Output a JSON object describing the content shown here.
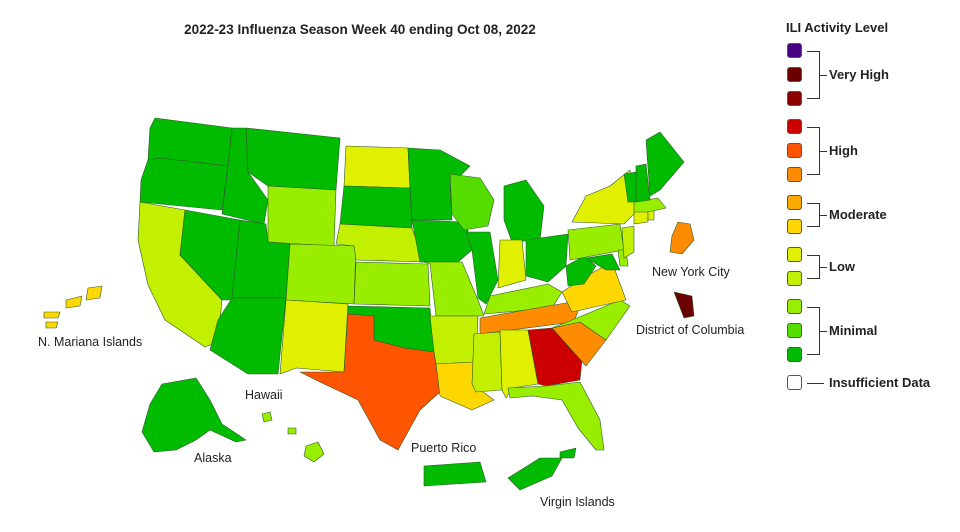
{
  "title": "2022-23 Influenza Season Week 40 ending Oct 08, 2022",
  "legend": {
    "title": "ILI Activity Level",
    "groups": [
      {
        "label": "Very High",
        "levels": [
          13,
          12,
          11
        ]
      },
      {
        "label": "High",
        "levels": [
          10,
          9,
          8
        ]
      },
      {
        "label": "Moderate",
        "levels": [
          7,
          6
        ]
      },
      {
        "label": "Low",
        "levels": [
          5,
          4
        ]
      },
      {
        "label": "Minimal",
        "levels": [
          3,
          2,
          1
        ]
      },
      {
        "label": "Insufficient Data",
        "levels": [
          0
        ]
      }
    ]
  },
  "level_colors": {
    "13": "#4b0082",
    "12": "#6a0000",
    "11": "#8b0000",
    "10": "#cc0000",
    "9": "#ff5500",
    "8": "#ff8c00",
    "7": "#ffaa00",
    "6": "#ffd700",
    "5": "#e0f000",
    "4": "#c2f000",
    "3": "#99ee00",
    "2": "#55dd00",
    "1": "#00bb00",
    "0": "#ffffff"
  },
  "territory_labels": {
    "mariana": "N. Mariana Islands",
    "alaska": "Alaska",
    "hawaii": "Hawaii",
    "puerto_rico": "Puerto Rico",
    "virgin_islands": "Virgin Islands",
    "nyc": "New York City",
    "dc": "District of Columbia"
  },
  "activity": {
    "WA": 1,
    "OR": 1,
    "ID": 1,
    "MT": 1,
    "WY": 3,
    "CA": 4,
    "NV": 1,
    "UT": 1,
    "AZ": 1,
    "CO": 3,
    "NM": 5,
    "ND": 5,
    "SD": 1,
    "NE": 4,
    "KS": 3,
    "OK": 1,
    "TX": 9,
    "MN": 1,
    "IA": 1,
    "MO": 3,
    "AR": 4,
    "LA": 6,
    "WI": 2,
    "IL": 1,
    "IN": 5,
    "MI": 1,
    "OH": 1,
    "KY": 3,
    "TN": 8,
    "MS": 4,
    "AL": 5,
    "GA": 10,
    "FL": 3,
    "SC": 8,
    "NC": 3,
    "VA": 6,
    "WV": 1,
    "PA": 3,
    "NY": 5,
    "VT": 1,
    "NH": 1,
    "ME": 1,
    "MA": 3,
    "CT": 5,
    "RI": 5,
    "NJ": 4,
    "DE": 3,
    "MD": 1,
    "AK": 1,
    "HI": 3,
    "PR": 1,
    "VI": 1,
    "MP": 6,
    "NYC": 8,
    "DC": 12
  }
}
